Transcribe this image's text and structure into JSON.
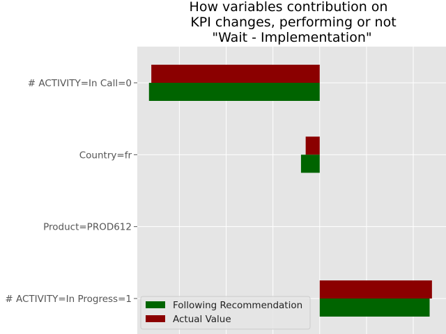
{
  "chart_data": {
    "type": "bar",
    "orientation": "horizontal",
    "title": [
      "How variables contribution on",
      "KPI changes, performing or not",
      "\"Wait - Implementation\""
    ],
    "categories": [
      "# ACTIVITY=In Call=0",
      "Country=fr",
      "Product=PROD612",
      "# ACTIVITY=In Progress=1"
    ],
    "series": [
      {
        "name": "Actual Value",
        "color": "#8b0000",
        "values": [
          -3.6,
          -0.3,
          0,
          2.4
        ]
      },
      {
        "name": "Following Recommendation",
        "color": "#006400",
        "values": [
          -3.65,
          -0.4,
          0,
          2.35
        ]
      }
    ],
    "xlim": [
      -3.9,
      2.7
    ],
    "grid": true,
    "legend": {
      "position": "lower-left",
      "entries": [
        {
          "label": "Following Recommendation",
          "color": "#006400"
        },
        {
          "label": "Actual Value",
          "color": "#8b0000"
        }
      ]
    }
  }
}
